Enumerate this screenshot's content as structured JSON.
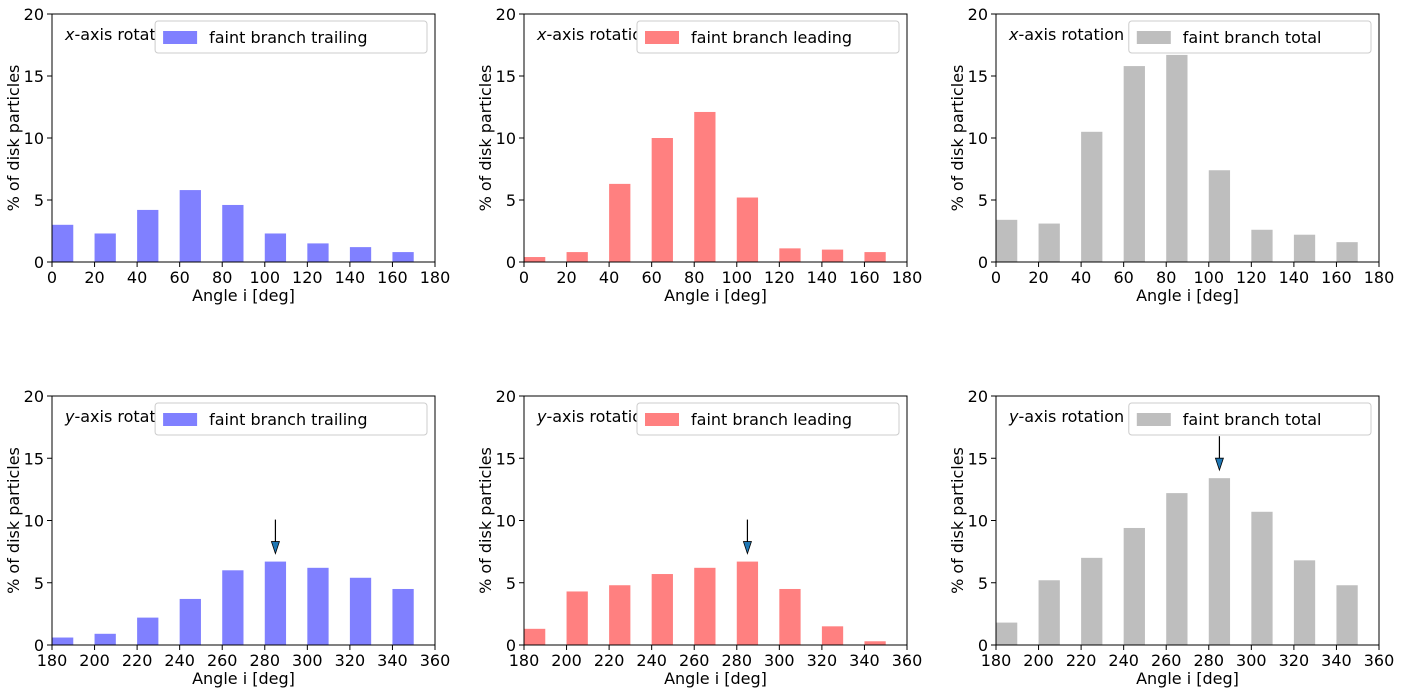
{
  "colors": {
    "trailing": "#8080ff",
    "leading": "#ff8080",
    "total": "#bebebe",
    "arrow_fill": "#1f77b4"
  },
  "chart_data": [
    {
      "type": "bar",
      "color_key": "trailing",
      "annotation_prefix": "x",
      "annotation_suffix": "-axis rotation",
      "legend": "faint branch trailing",
      "legend_position": "top-right",
      "xlabel": "Angle i [deg]",
      "ylabel": "% of disk particles",
      "xlim": [
        0,
        180
      ],
      "ylim": [
        0,
        20
      ],
      "xticks": [
        0,
        20,
        40,
        60,
        80,
        100,
        120,
        140,
        160,
        180
      ],
      "yticks": [
        0,
        5,
        10,
        15,
        20
      ],
      "grid": false,
      "x": [
        5,
        25,
        45,
        65,
        85,
        105,
        125,
        145,
        165
      ],
      "values": [
        3.0,
        2.3,
        4.2,
        5.8,
        4.6,
        2.3,
        1.5,
        1.2,
        0.8
      ],
      "arrow_x": null
    },
    {
      "type": "bar",
      "color_key": "leading",
      "annotation_prefix": "x",
      "annotation_suffix": "-axis rotation",
      "legend": "faint branch leading",
      "legend_position": "top-right",
      "xlabel": "Angle i [deg]",
      "ylabel": "% of disk particles",
      "xlim": [
        0,
        180
      ],
      "ylim": [
        0,
        20
      ],
      "xticks": [
        0,
        20,
        40,
        60,
        80,
        100,
        120,
        140,
        160,
        180
      ],
      "yticks": [
        0,
        5,
        10,
        15,
        20
      ],
      "grid": false,
      "x": [
        5,
        25,
        45,
        65,
        85,
        105,
        125,
        145,
        165
      ],
      "values": [
        0.4,
        0.8,
        6.3,
        10.0,
        12.1,
        5.2,
        1.1,
        1.0,
        0.8
      ],
      "arrow_x": null
    },
    {
      "type": "bar",
      "color_key": "total",
      "annotation_prefix": "x",
      "annotation_suffix": "-axis rotation",
      "legend": "faint branch total",
      "legend_position": "top-right",
      "xlabel": "Angle i [deg]",
      "ylabel": "% of disk particles",
      "xlim": [
        0,
        180
      ],
      "ylim": [
        0,
        20
      ],
      "xticks": [
        0,
        20,
        40,
        60,
        80,
        100,
        120,
        140,
        160,
        180
      ],
      "yticks": [
        0,
        5,
        10,
        15,
        20
      ],
      "grid": false,
      "x": [
        5,
        25,
        45,
        65,
        85,
        105,
        125,
        145,
        165
      ],
      "values": [
        3.4,
        3.1,
        10.5,
        15.8,
        16.7,
        7.4,
        2.6,
        2.2,
        1.6
      ],
      "arrow_x": null
    },
    {
      "type": "bar",
      "color_key": "trailing",
      "annotation_prefix": "y",
      "annotation_suffix": "-axis rotation",
      "legend": "faint branch trailing",
      "legend_position": "top-right",
      "xlabel": "Angle i [deg]",
      "ylabel": "% of disk particles",
      "xlim": [
        180,
        360
      ],
      "ylim": [
        0,
        20
      ],
      "xticks": [
        180,
        200,
        220,
        240,
        260,
        280,
        300,
        320,
        340,
        360
      ],
      "yticks": [
        0,
        5,
        10,
        15,
        20
      ],
      "grid": false,
      "x": [
        185,
        205,
        225,
        245,
        265,
        285,
        305,
        325,
        345
      ],
      "values": [
        0.6,
        0.9,
        2.2,
        3.7,
        6.0,
        6.7,
        6.2,
        5.4,
        4.5
      ],
      "arrow_x": 285
    },
    {
      "type": "bar",
      "color_key": "leading",
      "annotation_prefix": "y",
      "annotation_suffix": "-axis rotation",
      "legend": "faint branch leading",
      "legend_position": "top-right",
      "xlabel": "Angle i [deg]",
      "ylabel": "% of disk particles",
      "xlim": [
        180,
        360
      ],
      "ylim": [
        0,
        20
      ],
      "xticks": [
        180,
        200,
        220,
        240,
        260,
        280,
        300,
        320,
        340,
        360
      ],
      "yticks": [
        0,
        5,
        10,
        15,
        20
      ],
      "grid": false,
      "x": [
        185,
        205,
        225,
        245,
        265,
        285,
        305,
        325,
        345
      ],
      "values": [
        1.3,
        4.3,
        4.8,
        5.7,
        6.2,
        6.7,
        4.5,
        1.5,
        0.3
      ],
      "arrow_x": 285
    },
    {
      "type": "bar",
      "color_key": "total",
      "annotation_prefix": "y",
      "annotation_suffix": "-axis rotation",
      "legend": "faint branch total",
      "legend_position": "top-right",
      "xlabel": "Angle i [deg]",
      "ylabel": "% of disk particles",
      "xlim": [
        180,
        360
      ],
      "ylim": [
        0,
        20
      ],
      "xticks": [
        180,
        200,
        220,
        240,
        260,
        280,
        300,
        320,
        340,
        360
      ],
      "yticks": [
        0,
        5,
        10,
        15,
        20
      ],
      "grid": false,
      "x": [
        185,
        205,
        225,
        245,
        265,
        285,
        305,
        325,
        345
      ],
      "values": [
        1.8,
        5.2,
        7.0,
        9.4,
        12.2,
        13.4,
        10.7,
        6.8,
        4.8
      ],
      "arrow_x": 285
    }
  ]
}
